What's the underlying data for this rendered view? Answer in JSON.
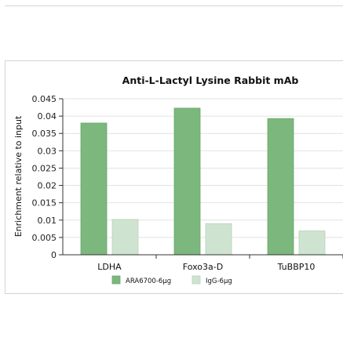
{
  "chart_data": {
    "type": "bar",
    "title": "Anti-L-Lactyl Lysine Rabbit mAb",
    "xlabel": "",
    "ylabel": "Enrichment relative to input",
    "categories": [
      "LDHA",
      "Foxo3a-D",
      "TuBBP10"
    ],
    "series": [
      {
        "name": "ARA6700-6μg",
        "values": [
          0.038,
          0.0423,
          0.0393
        ],
        "color": "#7cb77e"
      },
      {
        "name": "IgG-6μg",
        "values": [
          0.0102,
          0.009,
          0.0069
        ],
        "color": "#cfe3d1"
      }
    ],
    "ylim": [
      0,
      0.045
    ],
    "yticks": [
      "0",
      "0.005",
      "0.01",
      "0.015",
      "0.02",
      "0.025",
      "0.03",
      "0.035",
      "0.04",
      "0.045"
    ],
    "grid": true,
    "legend_position": "bottom"
  }
}
